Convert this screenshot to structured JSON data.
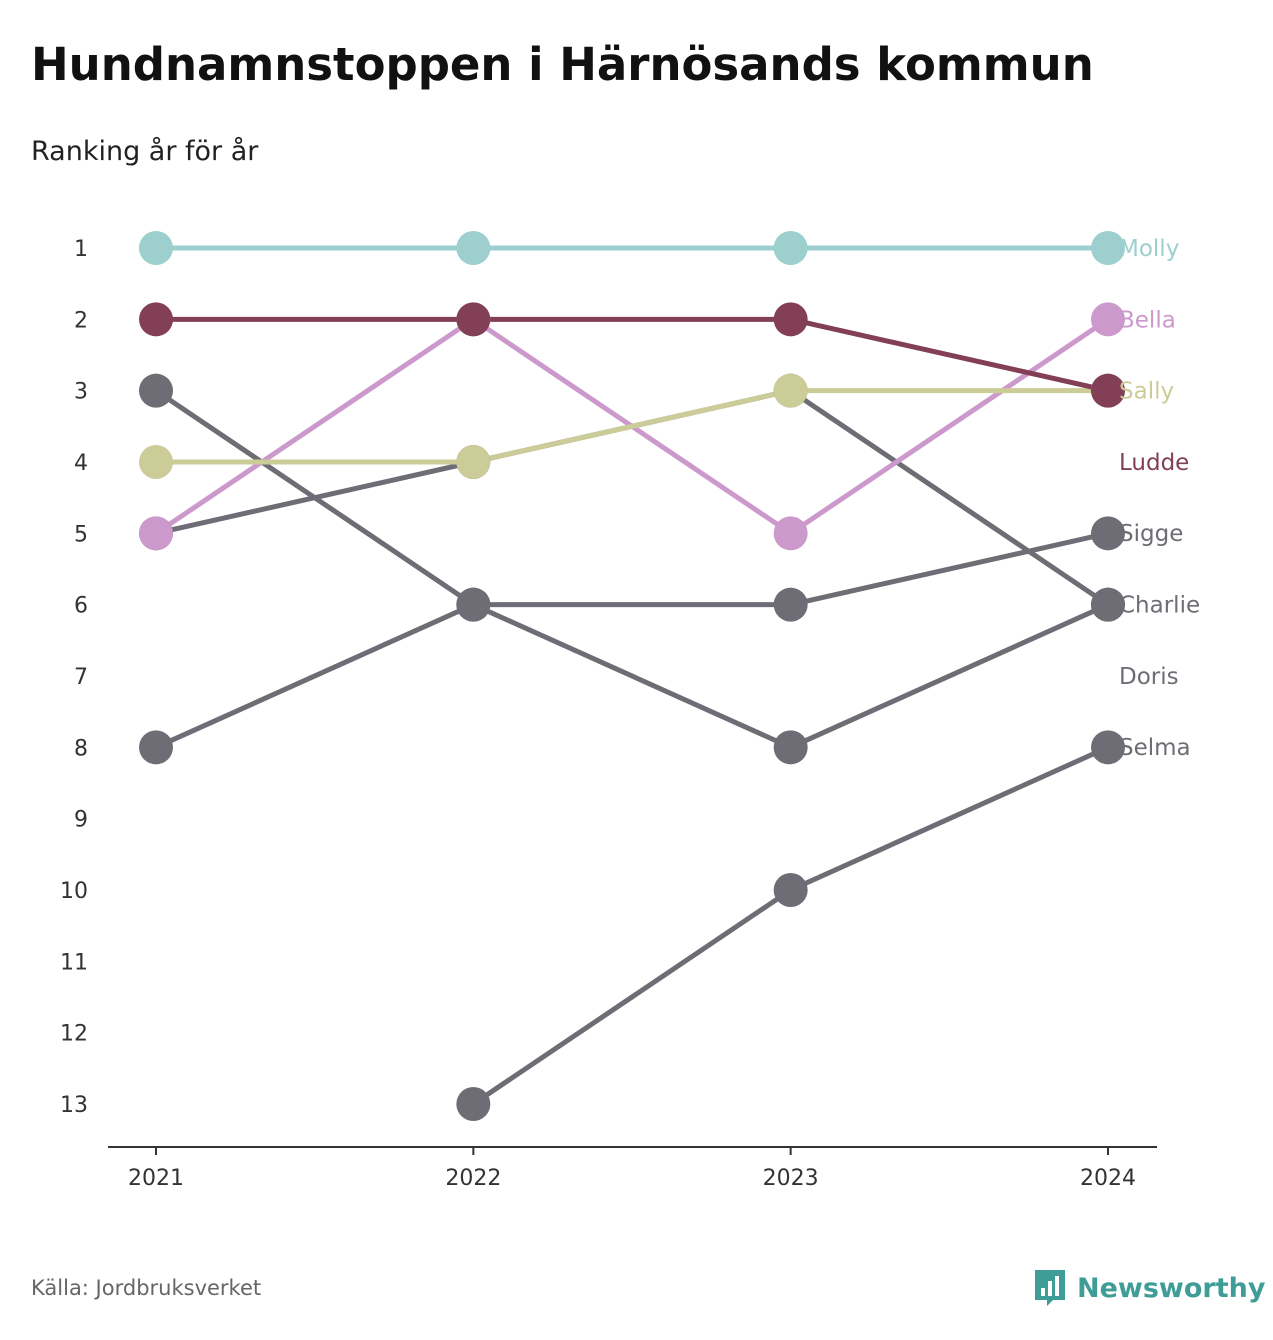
{
  "header": {
    "title": "Hundnamnstoppen i Härnösands kommun",
    "subtitle": "Ranking år för år"
  },
  "footer": {
    "source": "Källa: Jordbruksverket",
    "brand": "Newsworthy",
    "brand_icon": "bar-chart-speech-bubble-icon"
  },
  "colors": {
    "highlight_1": "#9ccfcd",
    "highlight_2": "#823f55",
    "highlight_3": "#ccaad2",
    "highlight_4": "#cccc99",
    "other": "#6e6d75",
    "axis": "#333333"
  },
  "chart_data": {
    "type": "line",
    "subtype": "bump",
    "x": [
      "2021",
      "2022",
      "2023",
      "2024"
    ],
    "ylim": [
      1,
      13
    ],
    "y_inverted": true,
    "y_ticks": [
      1,
      2,
      3,
      4,
      5,
      6,
      7,
      8,
      9,
      10,
      11,
      12,
      13
    ],
    "grid": false,
    "legend": "direct labels at right end of lines",
    "series": [
      {
        "name": "Molly",
        "color": "#9ccfcd",
        "values": [
          1,
          1,
          1,
          1
        ]
      },
      {
        "name": "Bella",
        "color": "#cc99cc",
        "values": [
          5,
          2,
          5,
          2
        ]
      },
      {
        "name": "Sally",
        "color": "#cccc99",
        "values": [
          4,
          4,
          3,
          3
        ]
      },
      {
        "name": "Ludde",
        "color": "#823f55",
        "values": [
          2,
          2,
          2,
          3
        ]
      },
      {
        "name": "Sigge",
        "color": "#6e6d75",
        "values": [
          8,
          6,
          6,
          5
        ]
      },
      {
        "name": "Charlie",
        "color": "#6e6d75",
        "values": [
          3,
          6,
          8,
          6
        ]
      },
      {
        "name": "Doris",
        "color": "#6e6d75",
        "values": [
          5,
          4,
          3,
          6
        ]
      },
      {
        "name": "Selma",
        "color": "#6e6d75",
        "values": [
          null,
          13,
          10,
          8
        ]
      }
    ]
  }
}
